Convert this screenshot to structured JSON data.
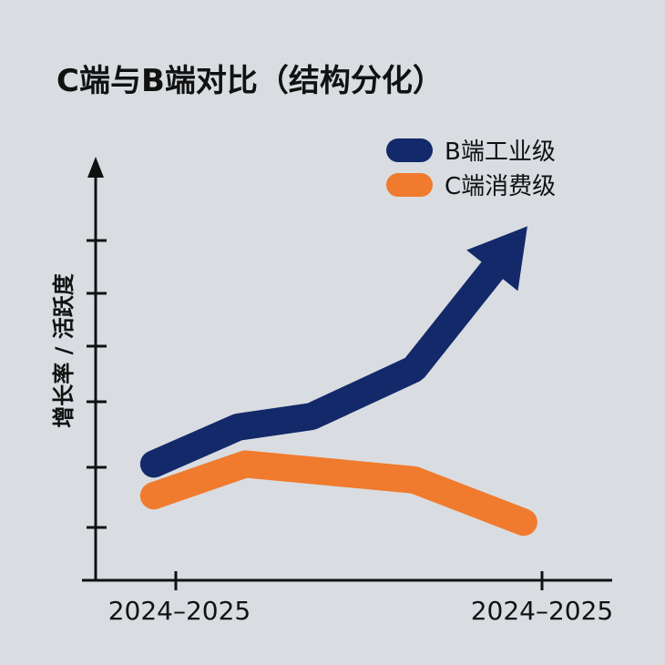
{
  "chart_data": {
    "type": "line",
    "title": "C端与B端对比（结构分化）",
    "xlabel": "",
    "ylabel": "增长率 / 活跃度",
    "x_tick_labels": [
      "2024–2025",
      "2024–2025"
    ],
    "y_tick_labels": [],
    "grid": false,
    "legend_placement": "top-right",
    "series": [
      {
        "name": "B端工业级",
        "color": "#13296a",
        "end_marker": "arrow",
        "x": [
          -0.6,
          1.7,
          3.7,
          6.5,
          9.6
        ],
        "y": [
          2.2,
          2.9,
          3.1,
          4.0,
          6.7
        ]
      },
      {
        "name": "C端消费级",
        "color": "#f07b2e",
        "x": [
          -0.6,
          1.9,
          6.5,
          9.5
        ],
        "y": [
          1.6,
          2.2,
          1.9,
          1.1
        ]
      }
    ]
  },
  "colors": {
    "background": "#d9dde1",
    "axis": "#111111"
  }
}
